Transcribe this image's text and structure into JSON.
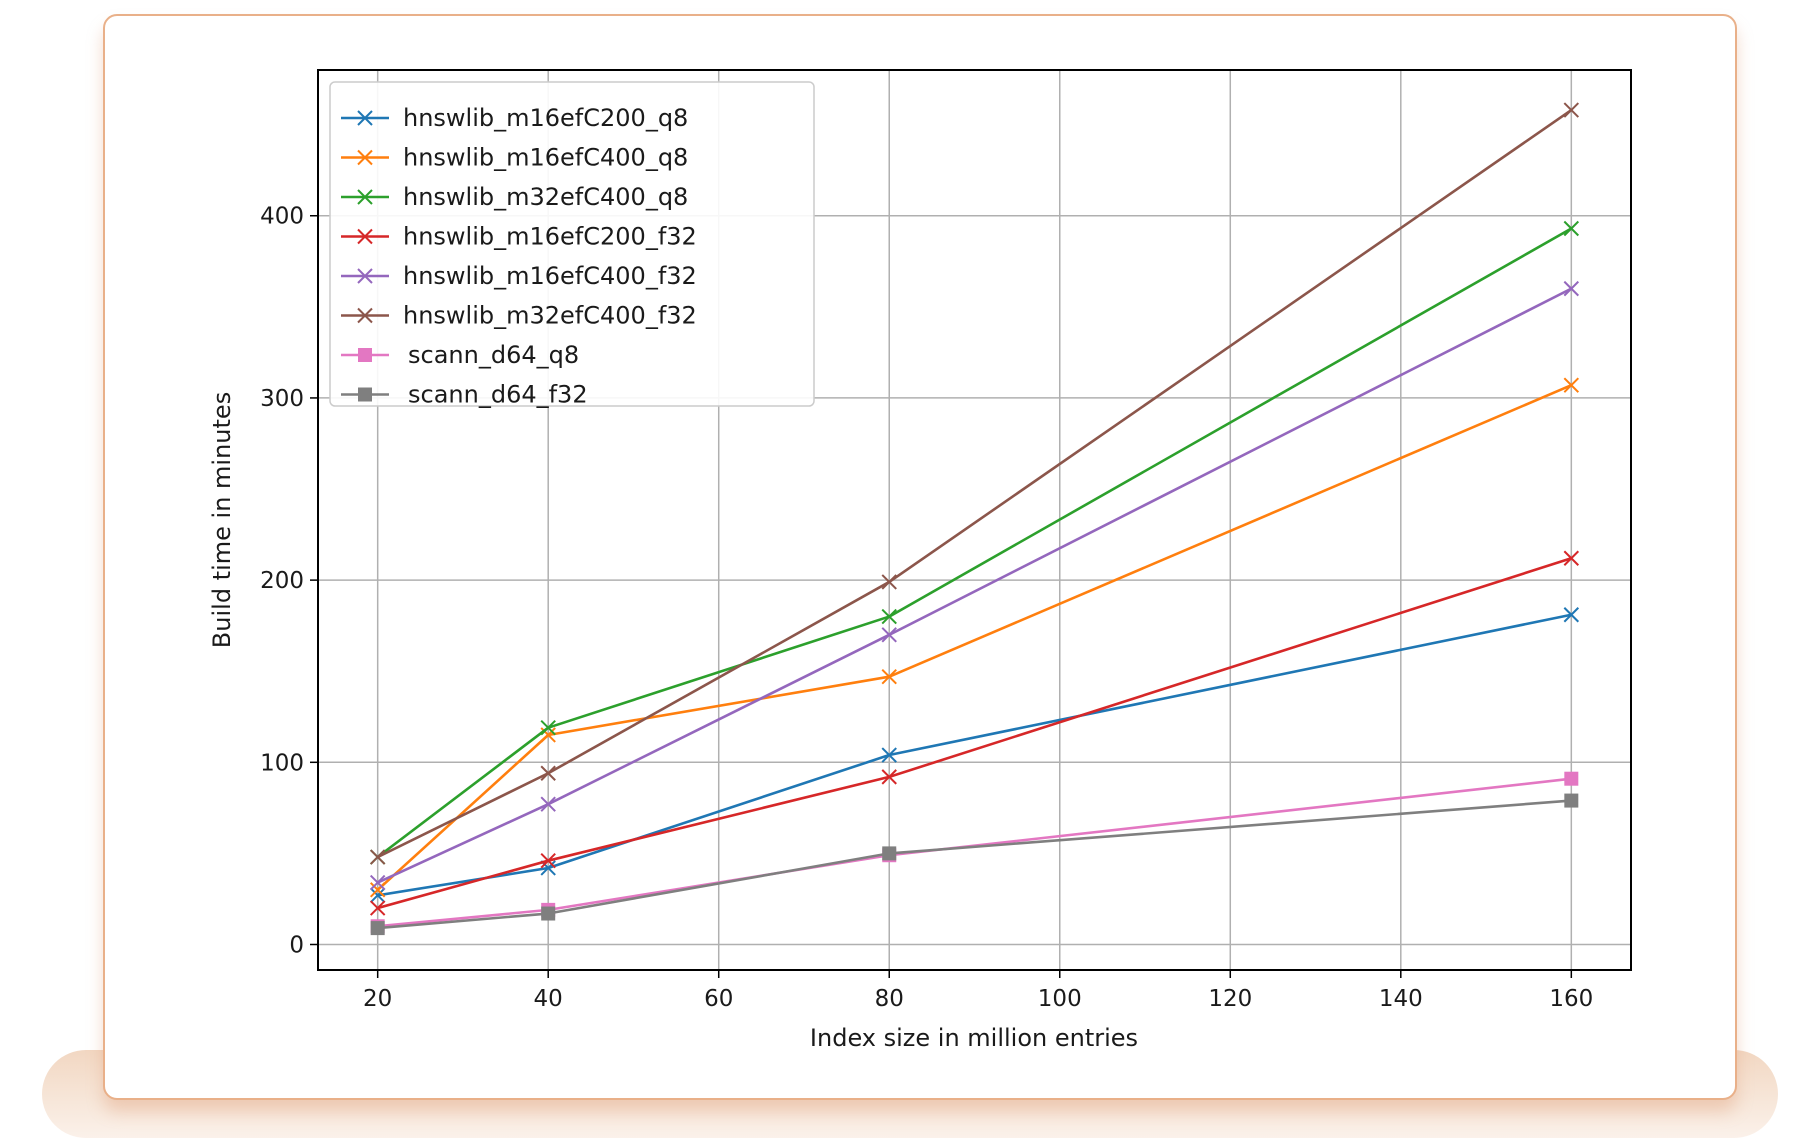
{
  "chart_data": {
    "type": "line",
    "xlabel": "Index size in million entries",
    "ylabel": "Build time in minutes",
    "xlim": [
      13,
      167
    ],
    "ylim": [
      -14,
      480
    ],
    "xticks": [
      20,
      40,
      60,
      80,
      100,
      120,
      140,
      160
    ],
    "yticks": [
      0,
      100,
      200,
      300,
      400
    ],
    "grid": true,
    "legend_position": "top-left",
    "x": [
      20,
      40,
      80,
      160
    ],
    "series": [
      {
        "name": "hnswlib_m16efC200_q8",
        "color": "#1f77b4",
        "marker": "x",
        "values": [
          27,
          42,
          104,
          181
        ]
      },
      {
        "name": "hnswlib_m16efC400_q8",
        "color": "#ff7f0e",
        "marker": "x",
        "values": [
          30,
          115,
          147,
          307
        ]
      },
      {
        "name": "hnswlib_m32efC400_q8",
        "color": "#2ca02c",
        "marker": "x",
        "values": [
          48,
          119,
          180,
          393
        ]
      },
      {
        "name": "hnswlib_m16efC200_f32",
        "color": "#d62728",
        "marker": "x",
        "values": [
          20,
          46,
          92,
          212
        ]
      },
      {
        "name": "hnswlib_m16efC400_f32",
        "color": "#9467bd",
        "marker": "x",
        "values": [
          34,
          77,
          170,
          360
        ]
      },
      {
        "name": "hnswlib_m32efC400_f32",
        "color": "#8c564b",
        "marker": "x",
        "values": [
          48,
          94,
          199,
          458
        ]
      },
      {
        "name": "scann_d64_q8",
        "color": "#e377c2",
        "marker": "s",
        "values": [
          10,
          19,
          49,
          91
        ]
      },
      {
        "name": "scann_d64_f32",
        "color": "#7f7f7f",
        "marker": "s",
        "values": [
          9,
          17,
          50,
          79
        ]
      }
    ]
  }
}
